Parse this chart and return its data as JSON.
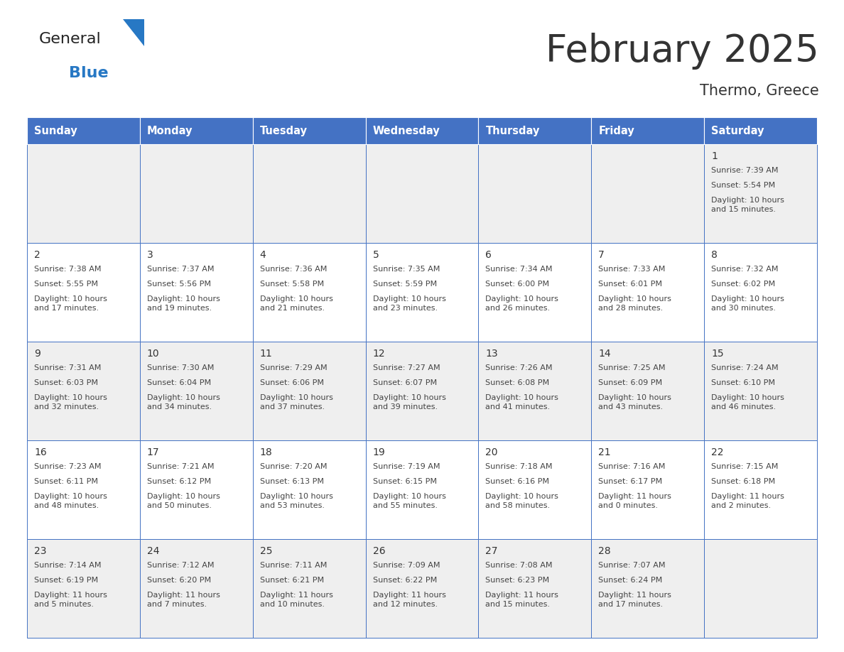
{
  "title": "February 2025",
  "subtitle": "Thermo, Greece",
  "header_bg": "#4472C4",
  "header_text": "#FFFFFF",
  "cell_bg_light": "#EFEFEF",
  "cell_bg_white": "#FFFFFF",
  "border_color": "#4472C4",
  "border_color_cell": "#4472C4",
  "day_headers": [
    "Sunday",
    "Monday",
    "Tuesday",
    "Wednesday",
    "Thursday",
    "Friday",
    "Saturday"
  ],
  "calendar_data": [
    [
      null,
      null,
      null,
      null,
      null,
      null,
      {
        "day": 1,
        "sunrise": "7:39 AM",
        "sunset": "5:54 PM",
        "daylight": "10 hours\nand 15 minutes."
      }
    ],
    [
      {
        "day": 2,
        "sunrise": "7:38 AM",
        "sunset": "5:55 PM",
        "daylight": "10 hours\nand 17 minutes."
      },
      {
        "day": 3,
        "sunrise": "7:37 AM",
        "sunset": "5:56 PM",
        "daylight": "10 hours\nand 19 minutes."
      },
      {
        "day": 4,
        "sunrise": "7:36 AM",
        "sunset": "5:58 PM",
        "daylight": "10 hours\nand 21 minutes."
      },
      {
        "day": 5,
        "sunrise": "7:35 AM",
        "sunset": "5:59 PM",
        "daylight": "10 hours\nand 23 minutes."
      },
      {
        "day": 6,
        "sunrise": "7:34 AM",
        "sunset": "6:00 PM",
        "daylight": "10 hours\nand 26 minutes."
      },
      {
        "day": 7,
        "sunrise": "7:33 AM",
        "sunset": "6:01 PM",
        "daylight": "10 hours\nand 28 minutes."
      },
      {
        "day": 8,
        "sunrise": "7:32 AM",
        "sunset": "6:02 PM",
        "daylight": "10 hours\nand 30 minutes."
      }
    ],
    [
      {
        "day": 9,
        "sunrise": "7:31 AM",
        "sunset": "6:03 PM",
        "daylight": "10 hours\nand 32 minutes."
      },
      {
        "day": 10,
        "sunrise": "7:30 AM",
        "sunset": "6:04 PM",
        "daylight": "10 hours\nand 34 minutes."
      },
      {
        "day": 11,
        "sunrise": "7:29 AM",
        "sunset": "6:06 PM",
        "daylight": "10 hours\nand 37 minutes."
      },
      {
        "day": 12,
        "sunrise": "7:27 AM",
        "sunset": "6:07 PM",
        "daylight": "10 hours\nand 39 minutes."
      },
      {
        "day": 13,
        "sunrise": "7:26 AM",
        "sunset": "6:08 PM",
        "daylight": "10 hours\nand 41 minutes."
      },
      {
        "day": 14,
        "sunrise": "7:25 AM",
        "sunset": "6:09 PM",
        "daylight": "10 hours\nand 43 minutes."
      },
      {
        "day": 15,
        "sunrise": "7:24 AM",
        "sunset": "6:10 PM",
        "daylight": "10 hours\nand 46 minutes."
      }
    ],
    [
      {
        "day": 16,
        "sunrise": "7:23 AM",
        "sunset": "6:11 PM",
        "daylight": "10 hours\nand 48 minutes."
      },
      {
        "day": 17,
        "sunrise": "7:21 AM",
        "sunset": "6:12 PM",
        "daylight": "10 hours\nand 50 minutes."
      },
      {
        "day": 18,
        "sunrise": "7:20 AM",
        "sunset": "6:13 PM",
        "daylight": "10 hours\nand 53 minutes."
      },
      {
        "day": 19,
        "sunrise": "7:19 AM",
        "sunset": "6:15 PM",
        "daylight": "10 hours\nand 55 minutes."
      },
      {
        "day": 20,
        "sunrise": "7:18 AM",
        "sunset": "6:16 PM",
        "daylight": "10 hours\nand 58 minutes."
      },
      {
        "day": 21,
        "sunrise": "7:16 AM",
        "sunset": "6:17 PM",
        "daylight": "11 hours\nand 0 minutes."
      },
      {
        "day": 22,
        "sunrise": "7:15 AM",
        "sunset": "6:18 PM",
        "daylight": "11 hours\nand 2 minutes."
      }
    ],
    [
      {
        "day": 23,
        "sunrise": "7:14 AM",
        "sunset": "6:19 PM",
        "daylight": "11 hours\nand 5 minutes."
      },
      {
        "day": 24,
        "sunrise": "7:12 AM",
        "sunset": "6:20 PM",
        "daylight": "11 hours\nand 7 minutes."
      },
      {
        "day": 25,
        "sunrise": "7:11 AM",
        "sunset": "6:21 PM",
        "daylight": "11 hours\nand 10 minutes."
      },
      {
        "day": 26,
        "sunrise": "7:09 AM",
        "sunset": "6:22 PM",
        "daylight": "11 hours\nand 12 minutes."
      },
      {
        "day": 27,
        "sunrise": "7:08 AM",
        "sunset": "6:23 PM",
        "daylight": "11 hours\nand 15 minutes."
      },
      {
        "day": 28,
        "sunrise": "7:07 AM",
        "sunset": "6:24 PM",
        "daylight": "11 hours\nand 17 minutes."
      },
      null
    ]
  ],
  "logo_text_general": "General",
  "logo_text_blue": "Blue",
  "logo_color_general": "#222222",
  "logo_color_blue": "#2778C4",
  "logo_triangle_color": "#2778C4",
  "text_color_dark": "#333333",
  "text_color_cell": "#444444"
}
